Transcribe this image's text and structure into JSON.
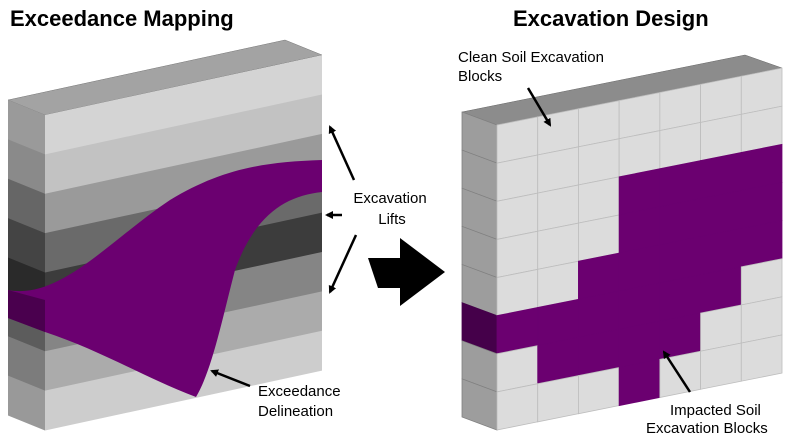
{
  "titles": {
    "left": "Exceedance Mapping",
    "right": "Excavation Design"
  },
  "labels": {
    "lifts": [
      "Excavation",
      "Lifts"
    ],
    "delineation": [
      "Exceedance",
      "Delineation"
    ],
    "clean": [
      "Clean Soil Excavation",
      "Blocks"
    ],
    "impacted": [
      "Impacted Soil",
      "Excavation Blocks"
    ]
  }
}
